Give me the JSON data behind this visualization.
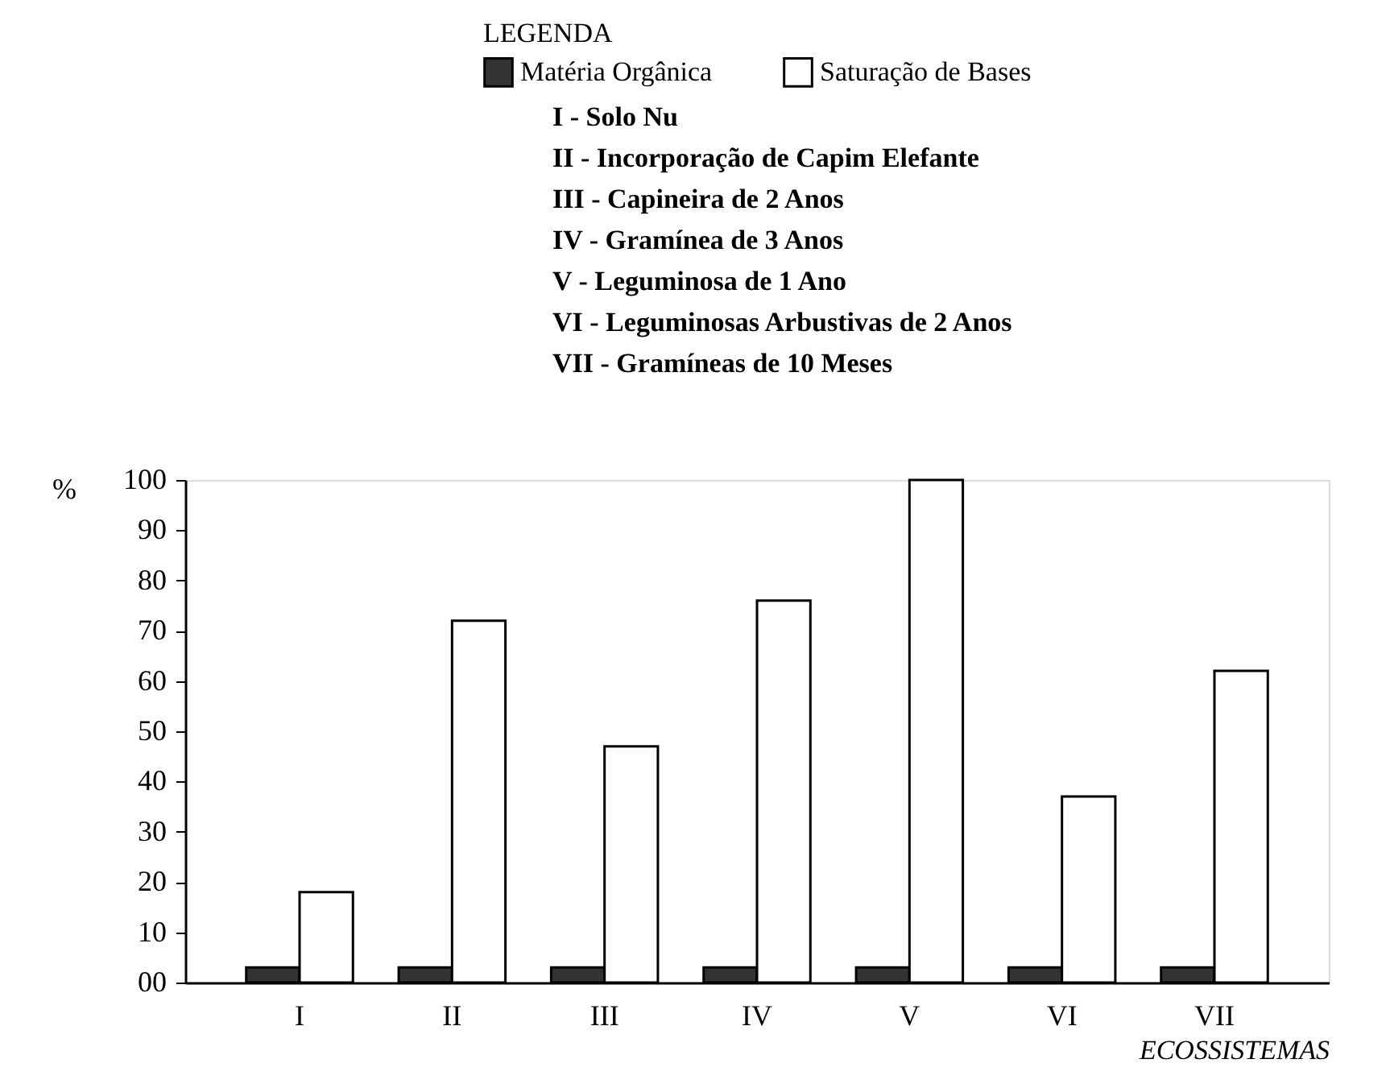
{
  "chart_data": {
    "type": "bar",
    "ylabel": "%",
    "xlabel": "ECOSSISTEMAS",
    "legend_title": "LEGENDA",
    "legend": "top right",
    "grid": false,
    "categories": [
      "I",
      "II",
      "III",
      "IV",
      "V",
      "VI",
      "VII"
    ],
    "series": [
      {
        "name": "Matéria Orgânica",
        "color": "#333333",
        "values": [
          3,
          3,
          3,
          3,
          3,
          3,
          3
        ]
      },
      {
        "name": "Saturação de Bases",
        "color": "#ffffff",
        "values": [
          18,
          72,
          47,
          76,
          100,
          37,
          62
        ]
      }
    ],
    "ylim": [
      0,
      100
    ],
    "yticks": [
      {
        "value": 0,
        "label": "00"
      },
      10,
      20,
      30,
      40,
      50,
      60,
      70,
      80,
      90,
      100
    ],
    "annotations": [
      "I - Solo Nu",
      "II - Incorporação de Capim Elefante",
      "III - Capineira de 2 Anos",
      "IV - Gramínea de 3 Anos",
      "V - Leguminosa de 1 Ano",
      "VI - Leguminosas Arbustivas de 2 Anos",
      "VII - Gramíneas de 10 Meses"
    ]
  }
}
